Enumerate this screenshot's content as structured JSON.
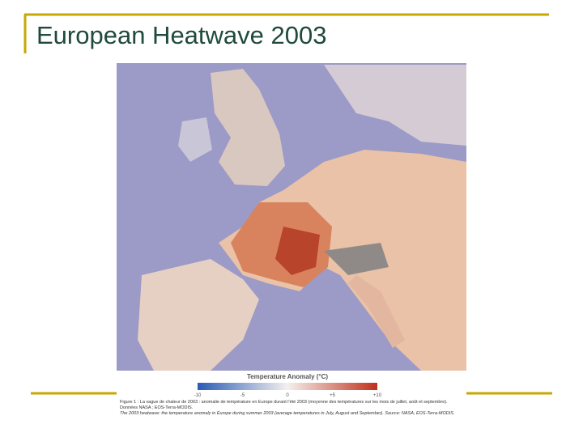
{
  "header": {
    "title": "European Heatwave 2003"
  },
  "figure": {
    "legend": {
      "title": "Temperature Anomaly (°C)",
      "ticks": [
        "-10",
        "-5",
        "0",
        "+5",
        "+10"
      ]
    },
    "caption_fr": "Figure 1 : La vague de chaleur de 2003 : anomalie de température en Europe durant l'été 2003 (moyenne des températures sur les mois de juillet, août et septembre). Données NASA ; EOS-Terra-MODIS.",
    "caption_en": "The 2003 heatwave: the temperature anomaly in Europe during summer 2003 (average temperatures in July, August and September). Source: NASA, EOS-Terra-MODIS."
  }
}
